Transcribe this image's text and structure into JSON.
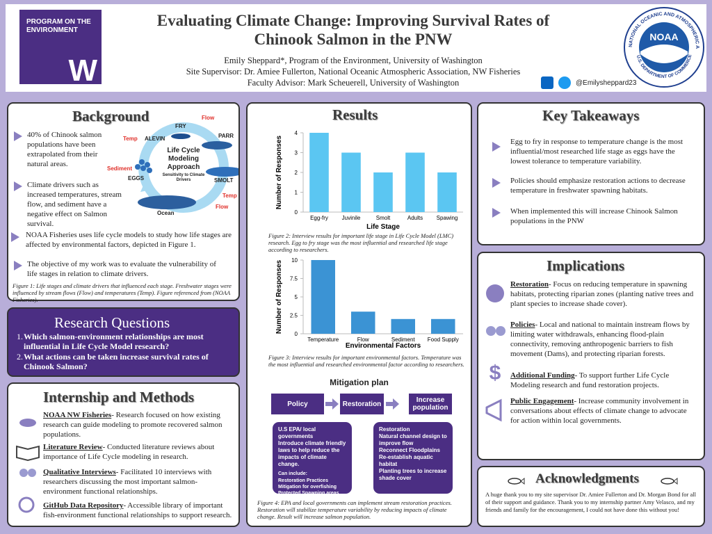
{
  "header": {
    "logo_text": "PROGRAM ON THE ENVIRONMENT",
    "logo_letter": "W",
    "title": "Evaluating Climate Change: Improving Survival Rates of Chinook Salmon in the PNW",
    "authors": [
      "Emily Sheppard*, Program of the Environment, University of Washington",
      "Site Supervisor: Dr. Amiee Fullerton, National Oceanic Atmospheric Association, NW Fisheries",
      "Faculty Advisor: Mark Scheuerell, University of Washington"
    ],
    "social_handle": "@Emilysheppard23",
    "noaa": {
      "acronym": "NOAA",
      "ring_top": "NATIONAL OCEANIC AND ATMOSPHERIC ADMINISTRATION",
      "ring_bottom": "U.S. DEPARTMENT OF COMMERCE"
    }
  },
  "background": {
    "heading": "Background",
    "bullets": [
      "40% of Chinook salmon populations have been extrapolated from their natural areas.",
      "Climate drivers such as increased temperatures, stream flow, and sediment have a negative effect on Salmon survival.",
      "NOAA Fisheries uses life cycle models to study how life stages are affected by environmental factors, depicted in Figure 1.",
      "The objective of my work was to evaluate the vulnerability of life stages in relation to climate drivers."
    ],
    "diagram": {
      "center_title": "Life Cycle Modeling Approach",
      "center_subtitle": "Sensitivity to Climate Drivers",
      "stages": [
        "FRY",
        "PARR",
        "ALEVIN",
        "EGGS",
        "SMOLT",
        "Ocean"
      ],
      "drivers": [
        "Flow",
        "Temp",
        "Sediment",
        "Temp",
        "Flow"
      ]
    },
    "caption": "Figure 1: Life stages and climate drivers that influenced each stage. Freshwater stages were influenced by stream flows (Flow) and temperatures (Temp). Figure referenced from (NOAA Fisheries)."
  },
  "research_questions": {
    "heading": "Research Questions",
    "items": [
      "Which salmon-environment relationships are most influential in Life Cycle Model research?",
      "What actions can be taken  increase survival rates of Chinook Salmon?"
    ]
  },
  "methods": {
    "heading": "Internship and Methods",
    "items": [
      {
        "term": "NOAA NW Fisheries",
        "text": "- Research focused on how existing research can guide modeling to promote recovered salmon populations."
      },
      {
        "term": "Literature Review",
        "text": "- Conducted literature reviews about importance of Life Cycle modeling in research."
      },
      {
        "term": "Qualitative Interviews",
        "text": "- Facilitated 10 interviews with researchers discussing the most important salmon-environment functional relationships."
      },
      {
        "term": "GitHub Data Repository",
        "text": "- Accessible library of important fish-environment functional relationships to support research."
      }
    ]
  },
  "results": {
    "heading": "Results",
    "charts": [
      {
        "type": "bar",
        "x_label": "Life Stage",
        "y_label": "Number of Responses",
        "categories": [
          "Egg-fry",
          "Juvinile",
          "Smolt",
          "Adults",
          "Spawing"
        ],
        "values": [
          4,
          3,
          2,
          3,
          2
        ],
        "color": "#5bc6f2",
        "ylim": [
          0,
          4
        ],
        "yticks": [
          0,
          1,
          2,
          3,
          4
        ],
        "caption": "Figure 2: Interview results for important life stage in Life Cycle Model (LMC) research. Egg to fry stage was the most influential and researched life stage according to researchers."
      },
      {
        "type": "bar",
        "x_label": "Environmental Factors",
        "y_label": "Number of Responses",
        "categories": [
          "Temperature",
          "Flow",
          "Sediment",
          "Food Supply"
        ],
        "values": [
          10,
          3,
          2,
          2
        ],
        "color": "#3b93d4",
        "ylim": [
          0,
          10
        ],
        "yticks": [
          0,
          2.5,
          5,
          7.5,
          10
        ],
        "caption": "Figure 3: Interview results for important environmental factors. Temperature was the most influential and researched environmental factor according to researchers."
      }
    ],
    "mitigation": {
      "heading": "Mitigation plan",
      "steps": [
        "Policy",
        "Restoration",
        "Increase population"
      ],
      "policy_box": {
        "lines": [
          "U.S EPA/ local governments",
          "Introduce climate friendly laws to help reduce the impacts of climate change."
        ],
        "sub_heading": "Can include:",
        "items": [
          "Restoration Practices",
          "Mitigation for overfishing",
          "Protected Spawning areas"
        ]
      },
      "restoration_box": {
        "heading": "Restoration",
        "items": [
          "Natural channel design to improve flow",
          "Reconnect Floodplains",
          "Re-establish aquatic habitat",
          "Planting trees to increase shade cover"
        ]
      },
      "caption": "Figure 4: EPA and local governments can implement stream restoration practices. Restoration will stabilize temperature variability by reducing impacts of climate change. Result will increase salmon population."
    }
  },
  "takeaways": {
    "heading": "Key Takeaways",
    "bullets": [
      "Egg to fry in response to temperature change is the most influential/most researched life stage as eggs have the lowest tolerance to temperature variability.",
      "Policies should emphasize restoration actions to decrease temperature in freshwater spawning habitats.",
      "When implemented this will increase Chinook Salmon populations in the PNW"
    ]
  },
  "implications": {
    "heading": "Implications",
    "items": [
      {
        "term": "Restoration",
        "text": "- Focus on reducing temperature in spawning habitats, protecting riparian zones (planting native trees and plant species to increase shade cover)."
      },
      {
        "term": "Policies",
        "text": "- Local and national to maintain instream flows by limiting water withdrawals, enhancing flood-plain connectivity, removing anthropogenic barriers to fish movement (Dams), and protecting riparian forests."
      },
      {
        "term": "Additional Funding",
        "text": "- To support further Life Cycle Modeling research and fund restoration projects."
      },
      {
        "term": "Public Engagement",
        "text": "- Increase community involvement in conversations about effects of climate change to advocate for action within local governments."
      }
    ]
  },
  "acknowledgments": {
    "heading": "Acknowledgments",
    "text": "A huge thank you to my site supervisor Dr. Amiee Fullerton and Dr. Morgan Bond for all of their support and guidance. Thank you to my internship partner Amy Velasco, and my friends and family for the encouragement, I could not have done this without you!"
  }
}
